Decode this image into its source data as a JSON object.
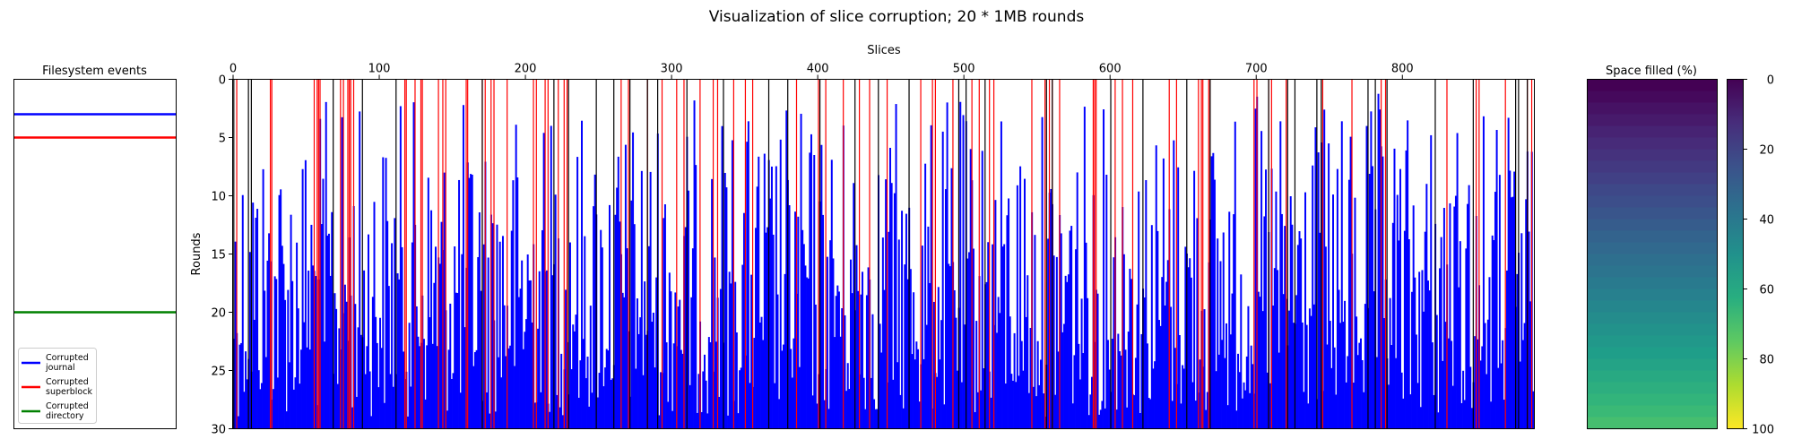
{
  "figure": {
    "suptitle": "Visualization of slice corruption; 20 * 1MB rounds"
  },
  "chart_data": [
    {
      "panel": "events",
      "type": "line",
      "title": "Filesystem events",
      "y_axis": {
        "range": [
          0,
          30
        ],
        "inverted": true,
        "ticks_visible": false
      },
      "series": [
        {
          "name": "Corrupted journal",
          "color": "#0000ff",
          "y": 3
        },
        {
          "name": "Corrupted superblock",
          "color": "#ff0000",
          "y": 5
        },
        {
          "name": "Corrupted directory",
          "color": "#008000",
          "y": 20
        }
      ],
      "legend_lines": [
        [
          "Corrupted",
          "journal"
        ],
        [
          "Corrupted",
          "superblock"
        ],
        [
          "Corrupted",
          "directory"
        ]
      ],
      "legend_position": "lower-left"
    },
    {
      "panel": "slices",
      "type": "bar",
      "xlabel": "Slices",
      "ylabel": "Rounds",
      "xlim": [
        0,
        890
      ],
      "ylim": [
        30,
        0
      ],
      "x_ticks": [
        "0",
        "100",
        "200",
        "300",
        "400",
        "500",
        "600",
        "700",
        "800"
      ],
      "y_ticks": [
        "0",
        "5",
        "10",
        "15",
        "20",
        "25",
        "30"
      ],
      "bar_color": "#0000ff",
      "approx_slice_count": 890,
      "typical_bar_top_range_rounds": [
        1,
        29
      ],
      "red_marker_slices": [
        2,
        25,
        26,
        55,
        57,
        58,
        59,
        73,
        75,
        78,
        79,
        80,
        82,
        117,
        118,
        124,
        128,
        129,
        140,
        143,
        145,
        159,
        160,
        170,
        172,
        176,
        178,
        187,
        205,
        207,
        213,
        215,
        222,
        226,
        228,
        265,
        270,
        283,
        293,
        303,
        308,
        319,
        328,
        331,
        342,
        350,
        355,
        385,
        400,
        405,
        417,
        428,
        435,
        447,
        470,
        478,
        480,
        492,
        505,
        510,
        517,
        520,
        546,
        555,
        558,
        560,
        565,
        588,
        589,
        590,
        603,
        608,
        615,
        640,
        645,
        660,
        662,
        663,
        667,
        668,
        698,
        700,
        708,
        710,
        720,
        745,
        765,
        785,
        788,
        830,
        850,
        852,
        870,
        885,
        888
      ],
      "black_marker_slices": [
        0,
        10,
        12,
        68,
        88,
        111,
        170,
        219,
        229,
        248,
        260,
        271,
        283,
        290,
        310,
        335,
        366,
        379,
        401,
        425,
        441,
        462,
        496,
        501,
        514,
        556,
        560,
        600,
        622,
        652,
        668,
        708,
        721,
        726,
        741,
        744,
        776,
        781,
        789,
        822,
        848,
        877,
        879,
        885
      ]
    },
    {
      "panel": "space",
      "type": "heatmap",
      "title": "Space filled (%)",
      "colormap": "viridis",
      "y_range_rounds": [
        0,
        30
      ],
      "approx_value_range_percent": [
        0,
        70
      ],
      "colorbar": {
        "ticks": [
          "0",
          "20",
          "40",
          "60",
          "80",
          "100"
        ],
        "range": [
          0,
          100
        ],
        "inverted": true
      }
    }
  ]
}
